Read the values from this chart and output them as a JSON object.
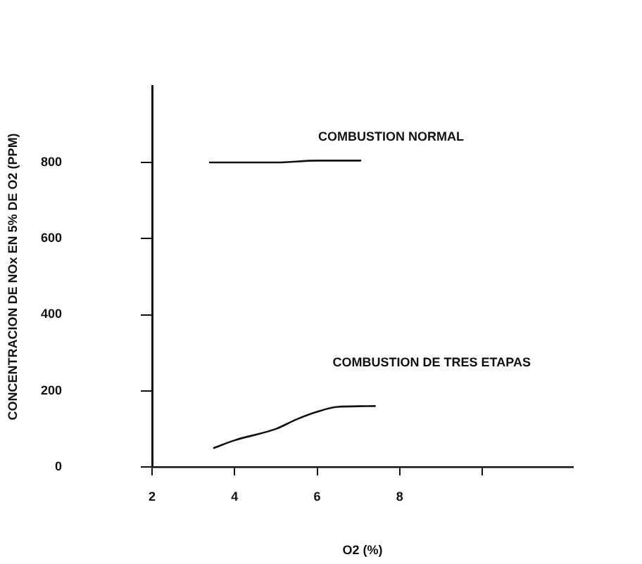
{
  "chart_data": {
    "type": "line",
    "xlabel": "O2 (%)",
    "ylabel": "CONCENTRACION DE NOx EN 5% DE O2 (PPM)",
    "xlim": [
      2,
      12.2
    ],
    "xticks": [
      2,
      4,
      6,
      8,
      {
        "value": 10,
        "label": null
      }
    ],
    "ylim": [
      0,
      1000
    ],
    "yticks": [
      0,
      200,
      400,
      600,
      800
    ],
    "series": [
      {
        "name": "COMBUSTION NORMAL",
        "color": "#111111",
        "x": [
          3.4,
          5,
          6,
          7.05
        ],
        "values": [
          800,
          800,
          805,
          805
        ]
      },
      {
        "name": "COMBUSTION DE TRES ETAPAS",
        "color": "#111111",
        "x": [
          3.5,
          4,
          5,
          5.5,
          6,
          6.5,
          7.4
        ],
        "values": [
          50,
          70,
          100,
          125,
          145,
          158,
          160
        ]
      }
    ],
    "grid": false,
    "legend": false,
    "marker": "none"
  }
}
